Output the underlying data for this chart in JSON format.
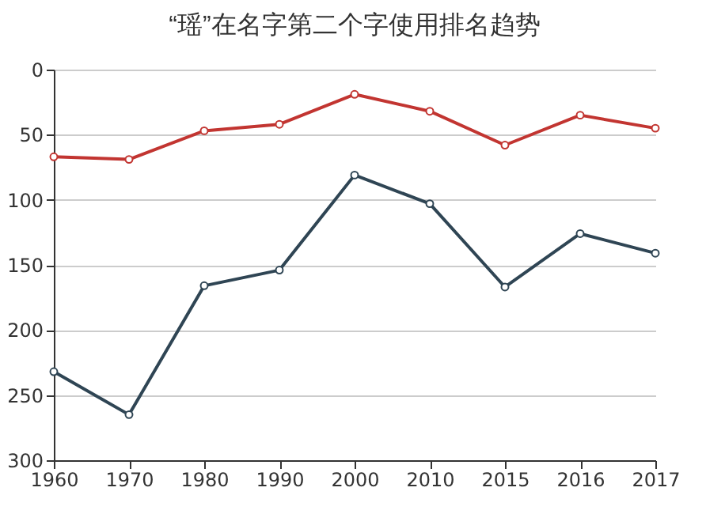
{
  "chart_data": {
    "type": "line",
    "title": "“瑶”在名字第二个字使用排名趋势",
    "categories": [
      "1960",
      "1970",
      "1980",
      "1990",
      "2000",
      "2010",
      "2015",
      "2016",
      "2017"
    ],
    "series": [
      {
        "color": "#c23531",
        "values": [
          67,
          69,
          47,
          42,
          19,
          32,
          58,
          35,
          45
        ]
      },
      {
        "color": "#2f4554",
        "values": [
          232,
          265,
          166,
          154,
          81,
          103,
          167,
          126,
          141
        ]
      }
    ],
    "ylim": [
      300,
      0
    ],
    "yticks": [
      0,
      50,
      100,
      150,
      200,
      250,
      300
    ],
    "grid": "y",
    "marker": "circle"
  }
}
